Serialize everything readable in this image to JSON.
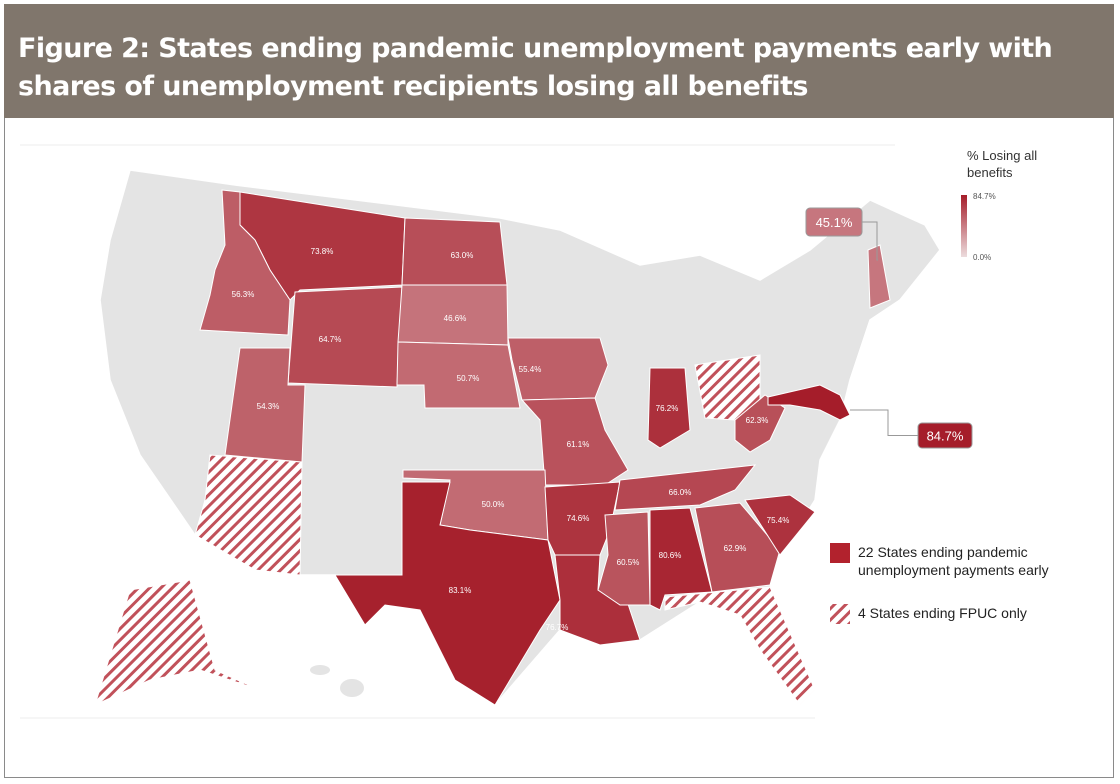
{
  "title": "Figure 2: States ending pandemic unemployment payments early with shares of unemployment recipients losing all benefits",
  "legend": {
    "title": "% Losing all benefits",
    "max": {
      "value": 84.7,
      "label": "84.7%"
    },
    "min": {
      "value": 0,
      "label": "0.0%"
    },
    "items": [
      "22 States ending pandemic unemployment payments early",
      "4 States ending FPUC only"
    ]
  },
  "states": [
    {
      "value": 73.8,
      "label": "73.8%"
    },
    {
      "value": 56.3,
      "label": "56.3%"
    },
    {
      "value": 64.7,
      "label": "64.7%"
    },
    {
      "value": 63.0,
      "label": "63.0%"
    },
    {
      "value": 46.6,
      "label": "46.6%"
    },
    {
      "value": 50.7,
      "label": "50.7%"
    },
    {
      "value": 55.4,
      "label": "55.4%"
    },
    {
      "value": 54.3,
      "label": "54.3%"
    },
    {
      "value": 61.1,
      "label": "61.1%"
    },
    {
      "value": 50.0,
      "label": "50.0%"
    },
    {
      "value": 83.1,
      "label": "83.1%"
    },
    {
      "value": 74.6,
      "label": "74.6%"
    },
    {
      "value": 76.7,
      "label": "76.7%"
    },
    {
      "value": 60.5,
      "label": "60.5%"
    },
    {
      "value": 80.6,
      "label": "80.6%"
    },
    {
      "value": 66.0,
      "label": "66.0%"
    },
    {
      "value": 62.9,
      "label": "62.9%"
    },
    {
      "value": 75.4,
      "label": "75.4%"
    },
    {
      "value": 76.2,
      "label": "76.2%"
    },
    {
      "value": 62.3,
      "label": "62.3%"
    },
    {
      "value": 84.7,
      "label": "84.7%"
    },
    {
      "value": 45.1,
      "label": "45.1%"
    }
  ]
}
